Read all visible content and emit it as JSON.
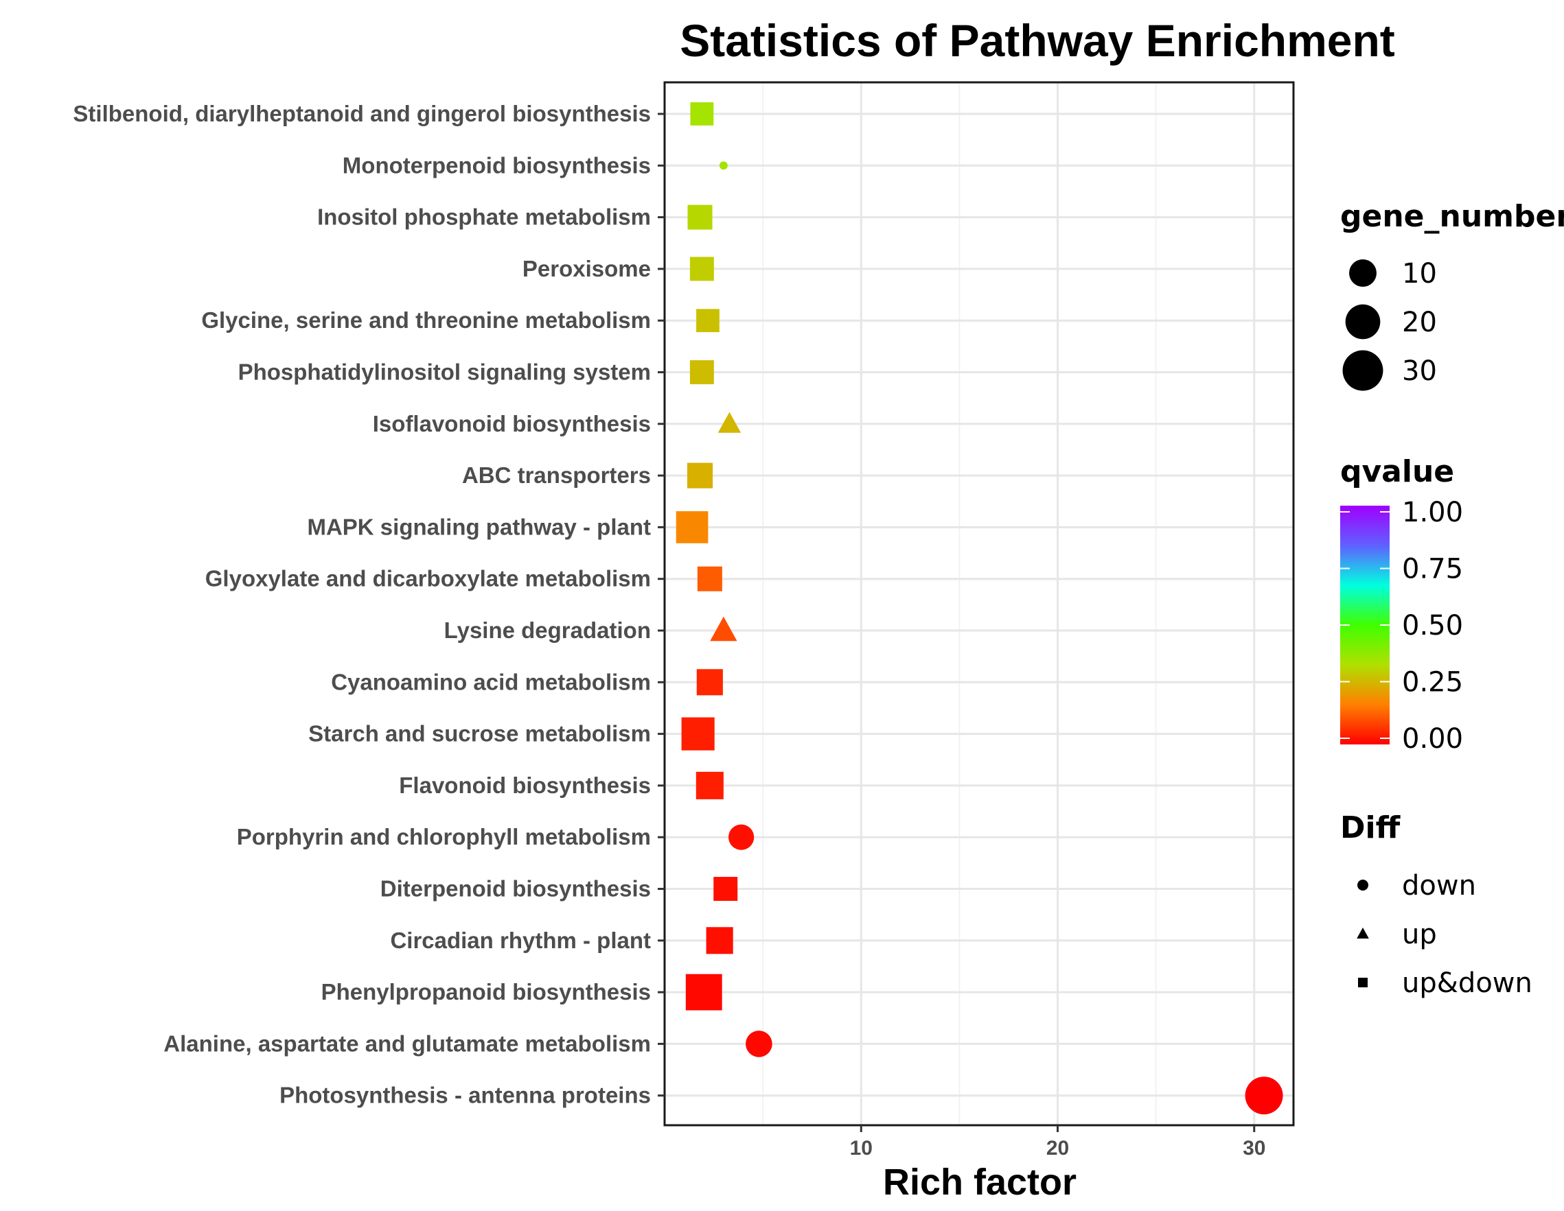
{
  "chart_data": {
    "type": "scatter",
    "title": "Statistics of Pathway Enrichment",
    "xlabel": "Rich factor",
    "ylabel": "",
    "xlim": [
      0,
      32
    ],
    "xticks": [
      10,
      20,
      30
    ],
    "grid": true,
    "legend_position": "right",
    "categories": [
      "Stilbenoid, diarylheptanoid and gingerol biosynthesis",
      "Monoterpenoid biosynthesis",
      "Inositol phosphate metabolism",
      "Peroxisome",
      "Glycine, serine and threonine metabolism",
      "Phosphatidylinositol signaling system",
      "Isoflavonoid biosynthesis",
      "ABC transporters",
      "MAPK signaling pathway - plant",
      "Glyoxylate and dicarboxylate metabolism",
      "Lysine degradation",
      "Cyanoamino acid metabolism",
      "Starch and sucrose metabolism",
      "Flavonoid biosynthesis",
      "Porphyrin and chlorophyll metabolism",
      "Diterpenoid biosynthesis",
      "Circadian rhythm - plant",
      "Phenylpropanoid biosynthesis",
      "Alanine, aspartate and glutamate metabolism",
      "Photosynthesis - antenna proteins"
    ],
    "points": [
      {
        "pathway": "Stilbenoid, diarylheptanoid and gingerol biosynthesis",
        "rich_factor": 1.9,
        "gene_number": 9,
        "qvalue": 0.35,
        "diff": "up&down"
      },
      {
        "pathway": "Monoterpenoid biosynthesis",
        "rich_factor": 3.0,
        "gene_number": 2,
        "qvalue": 0.35,
        "diff": "down"
      },
      {
        "pathway": "Inositol phosphate metabolism",
        "rich_factor": 1.8,
        "gene_number": 11,
        "qvalue": 0.32,
        "diff": "up&down"
      },
      {
        "pathway": "Peroxisome",
        "rich_factor": 1.9,
        "gene_number": 10,
        "qvalue": 0.3,
        "diff": "up&down"
      },
      {
        "pathway": "Glycine, serine and threonine metabolism",
        "rich_factor": 2.2,
        "gene_number": 9,
        "qvalue": 0.28,
        "diff": "up&down"
      },
      {
        "pathway": "Phosphatidylinositol signaling system",
        "rich_factor": 1.9,
        "gene_number": 10,
        "qvalue": 0.27,
        "diff": "up&down"
      },
      {
        "pathway": "Isoflavonoid biosynthesis",
        "rich_factor": 3.3,
        "gene_number": 4,
        "qvalue": 0.26,
        "diff": "up"
      },
      {
        "pathway": "ABC transporters",
        "rich_factor": 1.8,
        "gene_number": 12,
        "qvalue": 0.25,
        "diff": "up&down"
      },
      {
        "pathway": "MAPK signaling pathway - plant",
        "rich_factor": 1.4,
        "gene_number": 23,
        "qvalue": 0.18,
        "diff": "up&down"
      },
      {
        "pathway": "Glyoxylate and dicarboxylate metabolism",
        "rich_factor": 2.3,
        "gene_number": 11,
        "qvalue": 0.12,
        "diff": "up&down"
      },
      {
        "pathway": "Lysine degradation",
        "rich_factor": 3.0,
        "gene_number": 7,
        "qvalue": 0.1,
        "diff": "up"
      },
      {
        "pathway": "Cyanoamino acid metabolism",
        "rich_factor": 2.3,
        "gene_number": 13,
        "qvalue": 0.05,
        "diff": "up&down"
      },
      {
        "pathway": "Starch and sucrose metabolism",
        "rich_factor": 1.7,
        "gene_number": 25,
        "qvalue": 0.04,
        "diff": "up&down"
      },
      {
        "pathway": "Flavonoid biosynthesis",
        "rich_factor": 2.3,
        "gene_number": 15,
        "qvalue": 0.04,
        "diff": "up&down"
      },
      {
        "pathway": "Porphyrin and chlorophyll metabolism",
        "rich_factor": 3.9,
        "gene_number": 8,
        "qvalue": 0.02,
        "diff": "down"
      },
      {
        "pathway": "Diterpenoid biosynthesis",
        "rich_factor": 3.1,
        "gene_number": 10,
        "qvalue": 0.02,
        "diff": "up&down"
      },
      {
        "pathway": "Circadian rhythm - plant",
        "rich_factor": 2.8,
        "gene_number": 14,
        "qvalue": 0.02,
        "diff": "up&down"
      },
      {
        "pathway": "Phenylpropanoid biosynthesis",
        "rich_factor": 2.0,
        "gene_number": 32,
        "qvalue": 0.01,
        "diff": "up&down"
      },
      {
        "pathway": "Alanine, aspartate and glutamate metabolism",
        "rich_factor": 4.8,
        "gene_number": 9,
        "qvalue": 0.01,
        "diff": "down"
      },
      {
        "pathway": "Photosynthesis - antenna proteins",
        "rich_factor": 30.5,
        "gene_number": 25,
        "qvalue": 0.0,
        "diff": "down"
      }
    ],
    "legends": {
      "size": {
        "title": "gene_number",
        "entries": [
          {
            "value": 10,
            "label": "10"
          },
          {
            "value": 20,
            "label": "20"
          },
          {
            "value": 30,
            "label": "30"
          }
        ]
      },
      "color": {
        "title": "qvalue",
        "range": [
          0,
          1
        ],
        "ticks": [
          "1.00",
          "0.75",
          "0.50",
          "0.25",
          "0.00"
        ],
        "stops": [
          "#ff0000",
          "#ff8000",
          "#b0e000",
          "#40ff00",
          "#00ffe0",
          "#6060ff",
          "#a000ff"
        ]
      },
      "shape": {
        "title": "Diff",
        "entries": [
          {
            "shape": "circle",
            "label": "down"
          },
          {
            "shape": "triangle",
            "label": "up"
          },
          {
            "shape": "square",
            "label": "up&down"
          }
        ]
      }
    }
  }
}
